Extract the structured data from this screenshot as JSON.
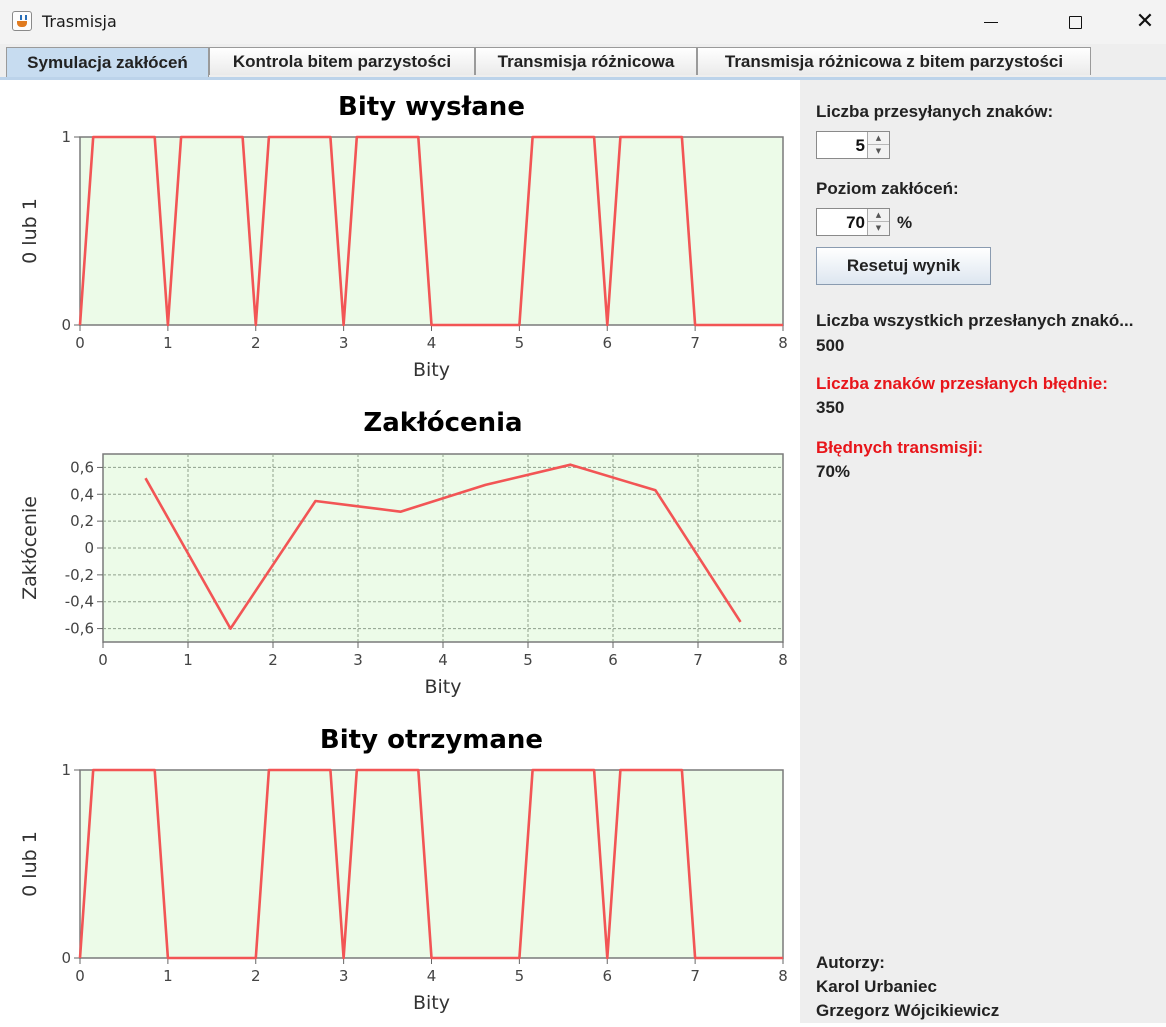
{
  "window": {
    "title": "Trasmisja"
  },
  "tabs": [
    {
      "label": "Symulacja zakłóceń"
    },
    {
      "label": "Kontrola bitem parzystości"
    },
    {
      "label": "Transmisja różnicowa"
    },
    {
      "label": "Transmisja różnicowa z bitem parzystości"
    }
  ],
  "colors": {
    "series": "#f25555",
    "plot_background": "#ecfbe8",
    "active_tab": "#c7dcf0",
    "error_text": "#e8151a"
  },
  "chart_data": [
    {
      "type": "line",
      "title": "Bity wysłane",
      "xlabel": "Bity",
      "ylabel": "0 lub 1",
      "xlim": [
        0,
        8
      ],
      "ylim": [
        0,
        1
      ],
      "xticks": [
        "0",
        "1",
        "2",
        "3",
        "4",
        "5",
        "6",
        "7",
        "8"
      ],
      "yticks": [
        "0",
        "1"
      ],
      "yticks_values": [
        0,
        1
      ],
      "grid": false,
      "series": [
        {
          "x": [
            0,
            0.15,
            0.85,
            1,
            1.15,
            1.85,
            2,
            2.15,
            2.85,
            3,
            3.15,
            3.85,
            4,
            5,
            5.15,
            5.85,
            6,
            6.15,
            6.85,
            7,
            8
          ],
          "y": [
            0,
            1,
            1,
            0,
            1,
            1,
            0,
            1,
            1,
            0,
            1,
            1,
            0,
            0,
            1,
            1,
            0,
            1,
            1,
            0,
            0
          ]
        }
      ]
    },
    {
      "type": "line",
      "title": "Zakłócenia",
      "xlabel": "Bity",
      "ylabel": "Zakłócenie",
      "xlim": [
        0,
        8
      ],
      "ylim": [
        -0.7,
        0.7
      ],
      "xticks": [
        "0",
        "1",
        "2",
        "3",
        "4",
        "5",
        "6",
        "7",
        "8"
      ],
      "yticks": [
        "-0,6",
        "-0,4",
        "-0,2",
        "0",
        "0,2",
        "0,4",
        "0,6"
      ],
      "yticks_values": [
        -0.6,
        -0.4,
        -0.2,
        0,
        0.2,
        0.4,
        0.6
      ],
      "grid": true,
      "series": [
        {
          "x": [
            0.5,
            1.5,
            2.5,
            3.5,
            4.5,
            5.5,
            6.5,
            7.5
          ],
          "y": [
            0.52,
            -0.6,
            0.35,
            0.27,
            0.47,
            0.62,
            0.43,
            -0.55
          ]
        }
      ]
    },
    {
      "type": "line",
      "title": "Bity otrzymane",
      "xlabel": "Bity",
      "ylabel": "0 lub 1",
      "xlim": [
        0,
        8
      ],
      "ylim": [
        0,
        1
      ],
      "xticks": [
        "0",
        "1",
        "2",
        "3",
        "4",
        "5",
        "6",
        "7",
        "8"
      ],
      "yticks": [
        "0",
        "1"
      ],
      "yticks_values": [
        0,
        1
      ],
      "grid": false,
      "series": [
        {
          "x": [
            0,
            0.15,
            0.85,
            1,
            2,
            2.15,
            2.85,
            3,
            3.15,
            3.85,
            4,
            5,
            5.15,
            5.85,
            6,
            6.15,
            6.85,
            7,
            8
          ],
          "y": [
            0,
            1,
            1,
            0,
            0,
            1,
            1,
            0,
            1,
            1,
            0,
            0,
            1,
            1,
            0,
            1,
            1,
            0,
            0
          ]
        }
      ]
    }
  ],
  "controls": {
    "chars_label": "Liczba przesyłanych znaków:",
    "chars_value": "5",
    "noise_label": "Poziom zakłóceń:",
    "noise_value": "70",
    "percent_sign": "%",
    "reset_button": "Resetuj wynik"
  },
  "stats": {
    "total_label": "Liczba wszystkich przesłanych znakó...",
    "total_value": "500",
    "wrong_label": "Liczba znaków przesłanych błędnie:",
    "wrong_value": "350",
    "error_label": "Błędnych transmisji:",
    "error_value": "70%"
  },
  "authors": {
    "label": "Autorzy:",
    "names": [
      "Karol Urbaniec",
      "Grzegorz Wójcikiewicz"
    ]
  }
}
